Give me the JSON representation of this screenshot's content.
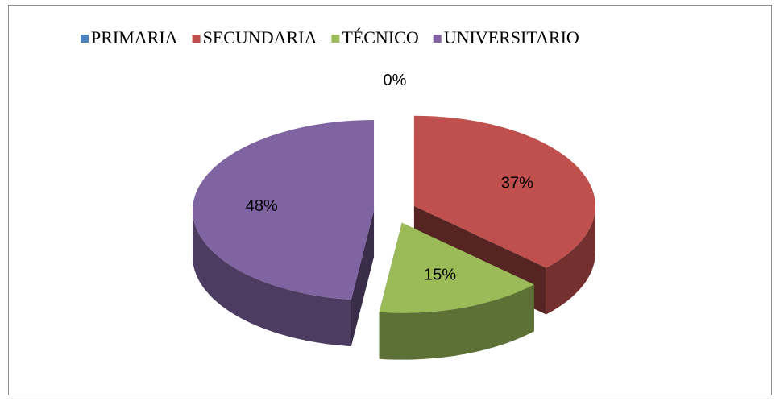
{
  "chart_data": {
    "type": "pie",
    "categories": [
      "PRIMARIA",
      "SECUNDARIA",
      "TÉCNICO",
      "UNIVERSITARIO"
    ],
    "values": [
      0,
      37,
      15,
      48
    ],
    "value_labels": [
      "0%",
      "37%",
      "15%",
      "48%"
    ],
    "colors": [
      "#4f81bd",
      "#c0504d",
      "#9bbb59",
      "#8064a2"
    ],
    "legend": "top"
  }
}
